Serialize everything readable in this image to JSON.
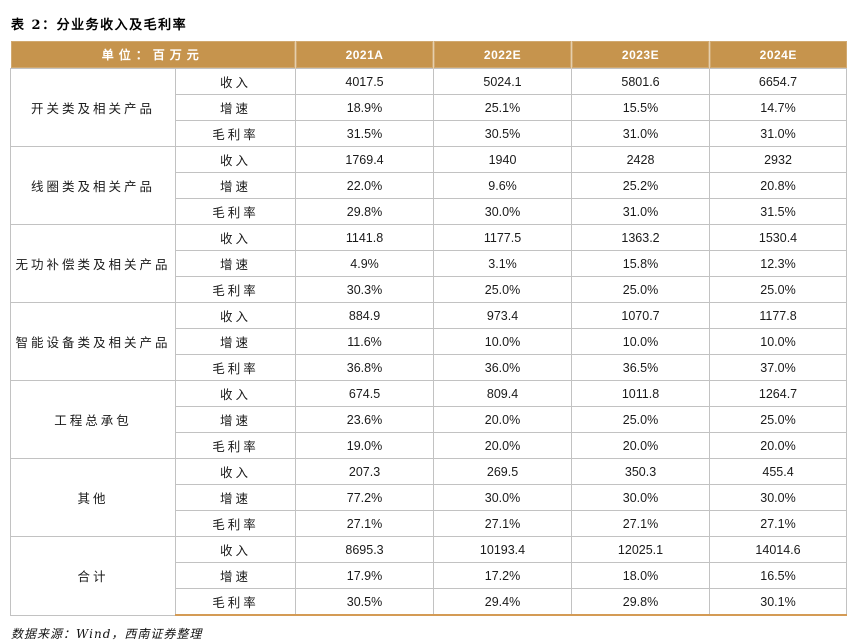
{
  "page": {
    "title": "表 2：分业务收入及毛利率",
    "source_note": "数据来源：Wind，西南证券整理"
  },
  "colors": {
    "header_bg": "#C6944D",
    "header_text": "#FFFFFF",
    "grid_line": "#C2C2C2",
    "bottom_border": "#D49B55"
  },
  "table": {
    "unit_label": "单位：百万元",
    "year_headers": [
      "2021A",
      "2022E",
      "2023E",
      "2024E"
    ],
    "metric_labels": [
      "收入",
      "增速",
      "毛利率"
    ],
    "groups": [
      {
        "name": "开关类及相关产品",
        "rows": [
          {
            "metric": "收入",
            "values": [
              "4017.5",
              "5024.1",
              "5801.6",
              "6654.7"
            ]
          },
          {
            "metric": "增速",
            "values": [
              "18.9%",
              "25.1%",
              "15.5%",
              "14.7%"
            ]
          },
          {
            "metric": "毛利率",
            "values": [
              "31.5%",
              "30.5%",
              "31.0%",
              "31.0%"
            ]
          }
        ]
      },
      {
        "name": "线圈类及相关产品",
        "rows": [
          {
            "metric": "收入",
            "values": [
              "1769.4",
              "1940",
              "2428",
              "2932"
            ]
          },
          {
            "metric": "增速",
            "values": [
              "22.0%",
              "9.6%",
              "25.2%",
              "20.8%"
            ]
          },
          {
            "metric": "毛利率",
            "values": [
              "29.8%",
              "30.0%",
              "31.0%",
              "31.5%"
            ]
          }
        ]
      },
      {
        "name": "无功补偿类及相关产品",
        "rows": [
          {
            "metric": "收入",
            "values": [
              "1141.8",
              "1177.5",
              "1363.2",
              "1530.4"
            ]
          },
          {
            "metric": "增速",
            "values": [
              "4.9%",
              "3.1%",
              "15.8%",
              "12.3%"
            ]
          },
          {
            "metric": "毛利率",
            "values": [
              "30.3%",
              "25.0%",
              "25.0%",
              "25.0%"
            ]
          }
        ]
      },
      {
        "name": "智能设备类及相关产品",
        "rows": [
          {
            "metric": "收入",
            "values": [
              "884.9",
              "973.4",
              "1070.7",
              "1177.8"
            ]
          },
          {
            "metric": "增速",
            "values": [
              "11.6%",
              "10.0%",
              "10.0%",
              "10.0%"
            ]
          },
          {
            "metric": "毛利率",
            "values": [
              "36.8%",
              "36.0%",
              "36.5%",
              "37.0%"
            ]
          }
        ]
      },
      {
        "name": "工程总承包",
        "rows": [
          {
            "metric": "收入",
            "values": [
              "674.5",
              "809.4",
              "1011.8",
              "1264.7"
            ]
          },
          {
            "metric": "增速",
            "values": [
              "23.6%",
              "20.0%",
              "25.0%",
              "25.0%"
            ]
          },
          {
            "metric": "毛利率",
            "values": [
              "19.0%",
              "20.0%",
              "20.0%",
              "20.0%"
            ]
          }
        ]
      },
      {
        "name": "其他",
        "rows": [
          {
            "metric": "收入",
            "values": [
              "207.3",
              "269.5",
              "350.3",
              "455.4"
            ]
          },
          {
            "metric": "增速",
            "values": [
              "77.2%",
              "30.0%",
              "30.0%",
              "30.0%"
            ]
          },
          {
            "metric": "毛利率",
            "values": [
              "27.1%",
              "27.1%",
              "27.1%",
              "27.1%"
            ]
          }
        ]
      },
      {
        "name": "合计",
        "rows": [
          {
            "metric": "收入",
            "values": [
              "8695.3",
              "10193.4",
              "12025.1",
              "14014.6"
            ]
          },
          {
            "metric": "增速",
            "values": [
              "17.9%",
              "17.2%",
              "18.0%",
              "16.5%"
            ]
          },
          {
            "metric": "毛利率",
            "values": [
              "30.5%",
              "29.4%",
              "29.8%",
              "30.1%"
            ]
          }
        ]
      }
    ]
  }
}
